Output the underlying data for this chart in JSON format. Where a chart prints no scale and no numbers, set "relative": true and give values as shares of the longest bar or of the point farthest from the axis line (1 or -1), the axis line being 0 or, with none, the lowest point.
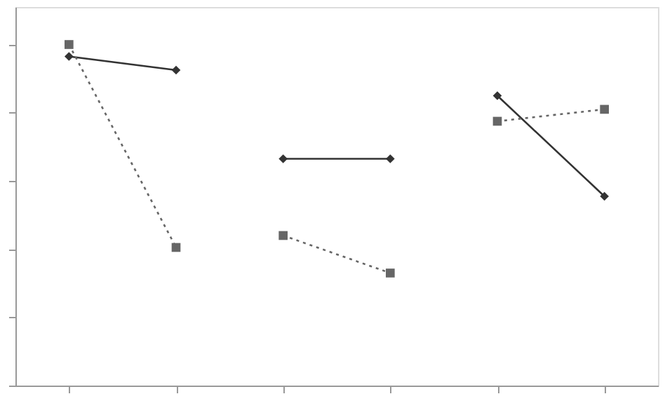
{
  "chart_data": {
    "type": "line",
    "relative": true,
    "categories": [
      null,
      null,
      null,
      null,
      null,
      null
    ],
    "series": [
      {
        "color": "#333333",
        "line_style": "solid",
        "marker": "diamond",
        "values": [
          0.965,
          0.925,
          null,
          null,
          null,
          null
        ]
      },
      {
        "color": "#333333",
        "line_style": "solid",
        "marker": "diamond",
        "values": [
          null,
          null,
          0.665,
          0.665,
          null,
          null
        ]
      },
      {
        "color": "#333333",
        "line_style": "solid",
        "marker": "diamond",
        "values": [
          null,
          null,
          null,
          null,
          0.85,
          0.555
        ]
      },
      {
        "color": "#666666",
        "line_style": "dotted",
        "marker": "square",
        "values": [
          1,
          0.405,
          null,
          null,
          null,
          null
        ]
      },
      {
        "color": "#666666",
        "line_style": "dotted",
        "marker": "square",
        "values": [
          null,
          null,
          0.44,
          0.33,
          null,
          null
        ]
      },
      {
        "color": "#666666",
        "line_style": "dotted",
        "marker": "square",
        "values": [
          null,
          null,
          null,
          null,
          0.775,
          0.81
        ]
      }
    ],
    "grid": false
  }
}
